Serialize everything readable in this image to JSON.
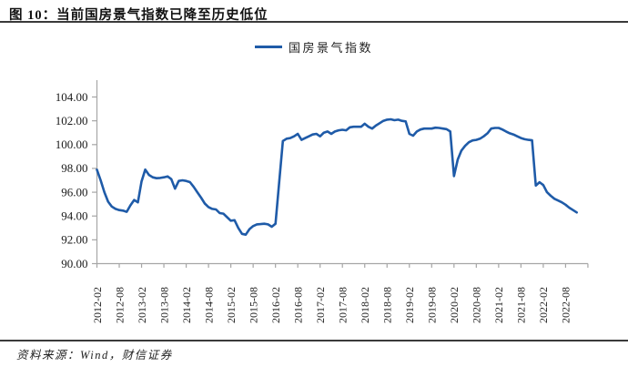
{
  "header": {
    "title": "图 10：当前国房景气指数已降至历史低位"
  },
  "legend": {
    "label": "国房景气指数"
  },
  "footer": {
    "source": "资料来源：Wind，财信证券"
  },
  "colors": {
    "line": "#1F5BA8",
    "axis": "#A6A6A6",
    "label_text": "#1a1a1a",
    "rule": "#3a3a3a",
    "background": "#ffffff"
  },
  "chart_data": {
    "type": "line",
    "title": "图 10：当前国房景气指数已降至历史低位",
    "xlabel": "",
    "ylabel": "",
    "grid": false,
    "legend_position": "top-center",
    "y_range": [
      90,
      104
    ],
    "y_tick_step": 2,
    "y_ticks": [
      "104.00",
      "102.00",
      "100.00",
      "98.00",
      "96.00",
      "94.00",
      "92.00",
      "90.00"
    ],
    "x_tick_labels": [
      "2012-02",
      "2012-08",
      "2013-02",
      "2013-08",
      "2014-02",
      "2014-08",
      "2015-02",
      "2015-08",
      "2016-02",
      "2016-08",
      "2017-02",
      "2017-08",
      "2018-02",
      "2018-08",
      "2019-02",
      "2019-08",
      "2020-02",
      "2020-08",
      "2021-02",
      "2021-08",
      "2022-02",
      "2022-08"
    ],
    "series": [
      {
        "name": "国房景气指数",
        "color": "#1F5BA8",
        "x": [
          "2012-02",
          "2012-03",
          "2012-04",
          "2012-05",
          "2012-06",
          "2012-07",
          "2012-08",
          "2012-09",
          "2012-10",
          "2012-11",
          "2012-12",
          "2013-01",
          "2013-02",
          "2013-03",
          "2013-04",
          "2013-05",
          "2013-06",
          "2013-07",
          "2013-08",
          "2013-09",
          "2013-10",
          "2013-11",
          "2013-12",
          "2014-01",
          "2014-02",
          "2014-03",
          "2014-04",
          "2014-05",
          "2014-06",
          "2014-07",
          "2014-08",
          "2014-09",
          "2014-10",
          "2014-11",
          "2014-12",
          "2015-01",
          "2015-02",
          "2015-03",
          "2015-04",
          "2015-05",
          "2015-06",
          "2015-07",
          "2015-08",
          "2015-09",
          "2015-10",
          "2015-11",
          "2015-12",
          "2016-01",
          "2016-02",
          "2016-03",
          "2016-04",
          "2016-05",
          "2016-06",
          "2016-07",
          "2016-08",
          "2016-09",
          "2016-10",
          "2016-11",
          "2016-12",
          "2017-01",
          "2017-02",
          "2017-03",
          "2017-04",
          "2017-05",
          "2017-06",
          "2017-07",
          "2017-08",
          "2017-09",
          "2017-10",
          "2017-11",
          "2017-12",
          "2018-01",
          "2018-02",
          "2018-03",
          "2018-04",
          "2018-05",
          "2018-06",
          "2018-07",
          "2018-08",
          "2018-09",
          "2018-10",
          "2018-11",
          "2018-12",
          "2019-01",
          "2019-02",
          "2019-03",
          "2019-04",
          "2019-05",
          "2019-06",
          "2019-07",
          "2019-08",
          "2019-09",
          "2019-10",
          "2019-11",
          "2019-12",
          "2020-01",
          "2020-02",
          "2020-03",
          "2020-04",
          "2020-05",
          "2020-06",
          "2020-07",
          "2020-08",
          "2020-09",
          "2020-10",
          "2020-11",
          "2020-12",
          "2021-01",
          "2021-02",
          "2021-03",
          "2021-04",
          "2021-05",
          "2021-06",
          "2021-07",
          "2021-08",
          "2021-09",
          "2021-10",
          "2021-11",
          "2021-12",
          "2022-01",
          "2022-02",
          "2022-03",
          "2022-04",
          "2022-05",
          "2022-06",
          "2022-07",
          "2022-08",
          "2022-09",
          "2022-10",
          "2022-11"
        ],
        "values": [
          97.89,
          97.0,
          96.0,
          95.2,
          94.8,
          94.6,
          94.5,
          94.45,
          94.35,
          94.9,
          95.35,
          95.15,
          96.9,
          97.9,
          97.45,
          97.25,
          97.18,
          97.2,
          97.25,
          97.33,
          97.1,
          96.3,
          96.95,
          97.0,
          96.95,
          96.85,
          96.45,
          96.0,
          95.55,
          95.05,
          94.75,
          94.6,
          94.55,
          94.25,
          94.2,
          93.9,
          93.6,
          93.65,
          93.0,
          92.5,
          92.43,
          92.9,
          93.15,
          93.3,
          93.32,
          93.35,
          93.3,
          93.1,
          93.35,
          96.8,
          100.3,
          100.5,
          100.55,
          100.7,
          100.9,
          100.4,
          100.55,
          100.7,
          100.85,
          100.9,
          100.7,
          101.0,
          101.1,
          100.9,
          101.1,
          101.2,
          101.25,
          101.2,
          101.45,
          101.5,
          101.5,
          101.5,
          101.75,
          101.5,
          101.35,
          101.6,
          101.8,
          102.0,
          102.1,
          102.13,
          102.05,
          102.1,
          102.0,
          101.95,
          100.9,
          100.75,
          101.1,
          101.27,
          101.35,
          101.35,
          101.35,
          101.42,
          101.4,
          101.35,
          101.3,
          101.1,
          97.35,
          98.74,
          99.5,
          99.9,
          100.2,
          100.35,
          100.4,
          100.5,
          100.7,
          100.95,
          101.35,
          101.4,
          101.4,
          101.27,
          101.1,
          100.95,
          100.85,
          100.7,
          100.55,
          100.45,
          100.4,
          100.36,
          96.56,
          96.84,
          96.6,
          96.0,
          95.7,
          95.45,
          95.3,
          95.15,
          94.95,
          94.7,
          94.5,
          94.3
        ]
      }
    ]
  }
}
